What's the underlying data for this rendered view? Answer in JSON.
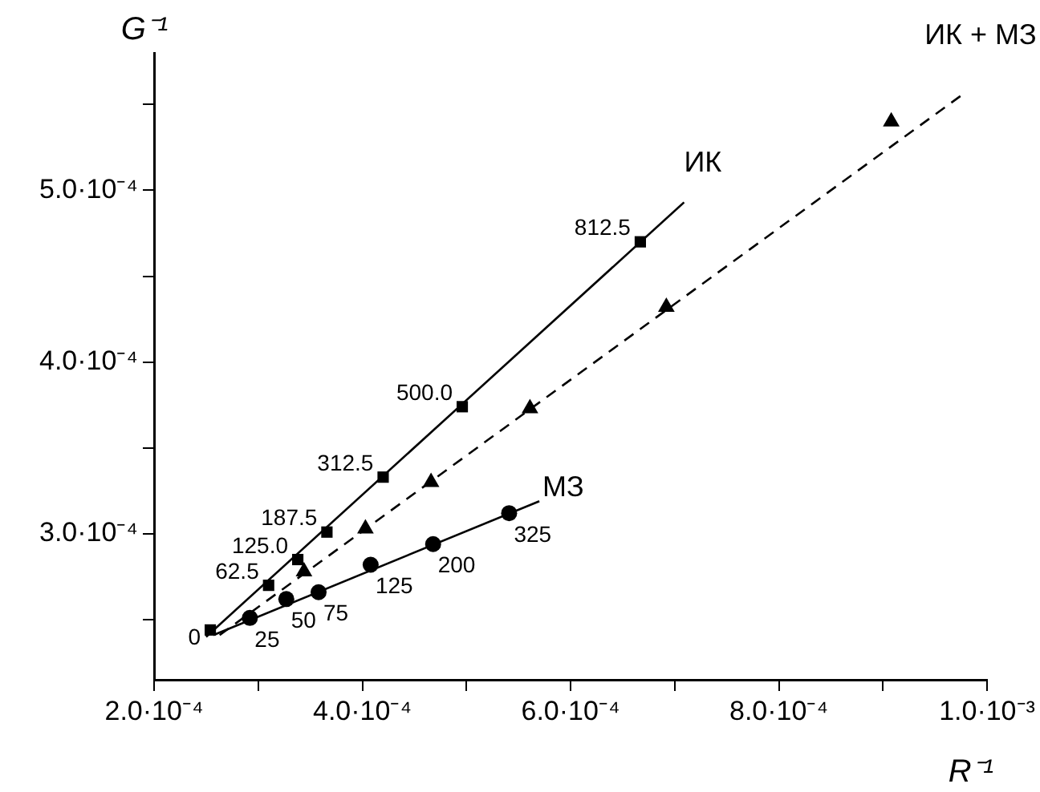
{
  "chart_data": {
    "type": "scatter",
    "xlabel": "R⁻¹",
    "ylabel": "G⁻¹",
    "xlim": [
      0.0002,
      0.001
    ],
    "ylim": [
      0.000215,
      0.00058
    ],
    "xticks": [
      {
        "value": 0.0002,
        "label": "2.0·10⁻⁴"
      },
      {
        "value": 0.0003,
        "label": null
      },
      {
        "value": 0.0004,
        "label": "4.0·10⁻⁴"
      },
      {
        "value": 0.0005,
        "label": null
      },
      {
        "value": 0.0006,
        "label": "6.0·10⁻⁴"
      },
      {
        "value": 0.0007,
        "label": null
      },
      {
        "value": 0.0008,
        "label": "8.0·10⁻⁴"
      },
      {
        "value": 0.0009,
        "label": null
      },
      {
        "value": 0.001,
        "label": "1.0·10⁻³"
      }
    ],
    "yticks": [
      {
        "value": 0.00025,
        "label": null
      },
      {
        "value": 0.0003,
        "label": "3.0·10⁻⁴"
      },
      {
        "value": 0.00035,
        "label": null
      },
      {
        "value": 0.0004,
        "label": "4.0·10⁻⁴"
      },
      {
        "value": 0.00045,
        "label": null
      },
      {
        "value": 0.0005,
        "label": "5.0·10⁻⁴"
      },
      {
        "value": 0.00055,
        "label": null
      }
    ],
    "grid": false,
    "legend": false,
    "annotations": [
      {
        "text": "0",
        "x": 0.000254,
        "y": 0.000244
      },
      {
        "text": "62.5",
        "x": 0.00031,
        "y": 0.00027
      },
      {
        "text": "125.0",
        "x": 0.000338,
        "y": 0.000285
      },
      {
        "text": "187.5",
        "x": 0.000366,
        "y": 0.000301
      },
      {
        "text": "312.5",
        "x": 0.00042,
        "y": 0.000333
      },
      {
        "text": "500.0",
        "x": 0.000496,
        "y": 0.000374
      },
      {
        "text": "812.5",
        "x": 0.000667,
        "y": 0.00047
      },
      {
        "text": "25",
        "x": 0.000292,
        "y": 0.000251
      },
      {
        "text": "50",
        "x": 0.000327,
        "y": 0.000262
      },
      {
        "text": "75",
        "x": 0.000358,
        "y": 0.000266
      },
      {
        "text": "125",
        "x": 0.000408,
        "y": 0.000282
      },
      {
        "text": "200",
        "x": 0.000468,
        "y": 0.000294
      },
      {
        "text": "325",
        "x": 0.000541,
        "y": 0.000312
      }
    ],
    "series": [
      {
        "type": "line",
        "name": "ИК",
        "color": "#000000",
        "line_style": "solid",
        "marker": "none",
        "x": [
          0.00025,
          0.000709
        ],
        "values": [
          0.00024,
          0.000493
        ]
      },
      {
        "type": "line",
        "name": "МЗ",
        "color": "#000000",
        "line_style": "solid",
        "marker": "none",
        "x": [
          0.000257,
          0.00057
        ],
        "values": [
          0.000241,
          0.000319
        ]
      },
      {
        "type": "line",
        "name": "ИК + МЗ",
        "color": "#000000",
        "line_style": "dashed",
        "marker": "none",
        "x": [
          0.000263,
          0.000977
        ],
        "values": [
          0.000241,
          0.000556
        ]
      },
      {
        "type": "scatter",
        "color": "#000000",
        "marker": "square",
        "x": [
          0.000254,
          0.00031,
          0.000338,
          0.000366,
          0.00042,
          0.000496,
          0.000667
        ],
        "values": [
          0.000244,
          0.00027,
          0.000285,
          0.000301,
          0.000333,
          0.000374,
          0.00047
        ]
      },
      {
        "type": "scatter",
        "color": "#000000",
        "marker": "circle",
        "x": [
          0.000292,
          0.000327,
          0.000358,
          0.000408,
          0.000468,
          0.000541
        ],
        "values": [
          0.000251,
          0.000262,
          0.000266,
          0.000282,
          0.000294,
          0.000312
        ]
      },
      {
        "type": "scatter",
        "color": "#000000",
        "marker": "triangle",
        "x": [
          0.000344,
          0.000403,
          0.000466,
          0.000561,
          0.000692,
          0.000908
        ],
        "values": [
          0.000278,
          0.000303,
          0.00033,
          0.000373,
          0.000432,
          0.00054
        ]
      }
    ]
  }
}
